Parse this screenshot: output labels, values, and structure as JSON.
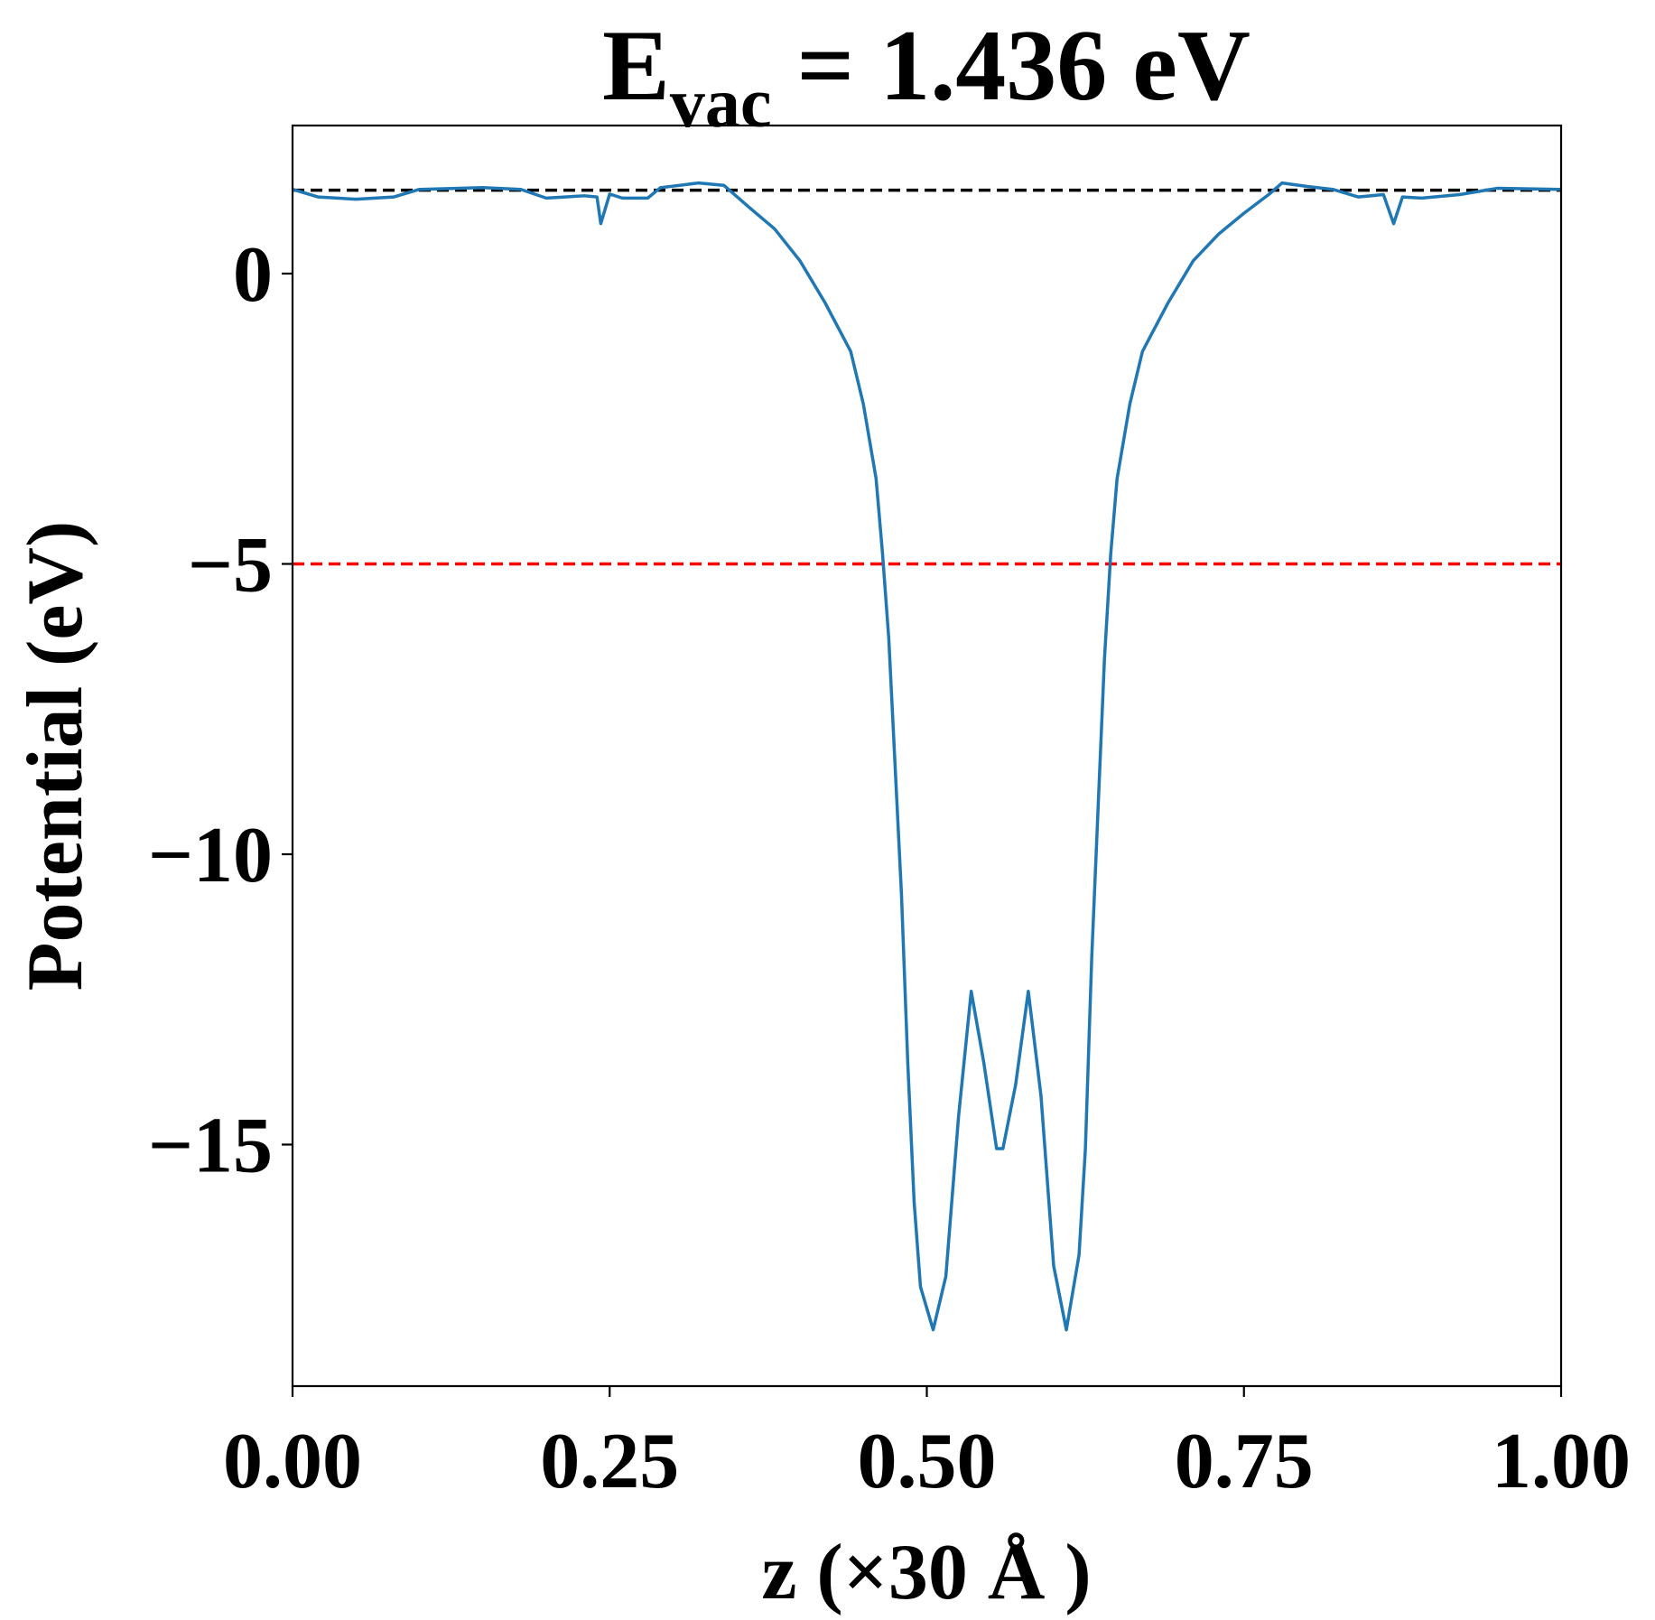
{
  "chart_data": {
    "type": "line",
    "title": {
      "main": "E",
      "sub": "vac",
      "rest": " = 1.436 eV"
    },
    "x_label": "z (×30 Å )",
    "y_label": "Potential (eV)",
    "xlim": [
      0,
      1
    ],
    "ylim": [
      -19.16,
      2.55
    ],
    "xticks": [
      {
        "value": 0,
        "label": "0.00"
      },
      {
        "value": 0.25,
        "label": "0.25"
      },
      {
        "value": 0.5,
        "label": "0.50"
      },
      {
        "value": 0.75,
        "label": "0.75"
      },
      {
        "value": 1,
        "label": "1.00"
      }
    ],
    "yticks": [
      {
        "value": 0,
        "label": "0"
      },
      {
        "value": -5,
        "label": "−5"
      },
      {
        "value": -10,
        "label": "−10"
      },
      {
        "value": -15,
        "label": "−15"
      }
    ],
    "hlines": [
      {
        "value": 1.436,
        "color": "#000000"
      },
      {
        "value": -5,
        "color": "#ff0000"
      }
    ],
    "series": [
      {
        "color": "#1f77b4",
        "x": [
          0,
          0.02,
          0.05,
          0.08,
          0.1,
          0.15,
          0.18,
          0.2,
          0.23,
          0.24,
          0.243,
          0.25,
          0.26,
          0.28,
          0.29,
          0.32,
          0.34,
          0.36,
          0.38,
          0.4,
          0.42,
          0.44,
          0.45,
          0.46,
          0.465,
          0.47,
          0.475,
          0.48,
          0.485,
          0.49,
          0.495,
          0.505,
          0.515,
          0.525,
          0.535,
          0.545,
          0.555,
          0.56,
          0.57,
          0.58,
          0.59,
          0.6,
          0.61,
          0.62,
          0.625,
          0.63,
          0.635,
          0.64,
          0.645,
          0.65,
          0.66,
          0.67,
          0.69,
          0.71,
          0.73,
          0.75,
          0.77,
          0.78,
          0.8,
          0.82,
          0.84,
          0.86,
          0.868,
          0.875,
          0.89,
          0.92,
          0.95,
          1.0
        ],
        "values": [
          1.45,
          1.32,
          1.28,
          1.32,
          1.45,
          1.48,
          1.45,
          1.3,
          1.34,
          1.32,
          0.86,
          1.37,
          1.3,
          1.3,
          1.48,
          1.56,
          1.52,
          1.14,
          0.77,
          0.22,
          -0.51,
          -1.34,
          -2.25,
          -3.53,
          -4.8,
          -6.28,
          -8.48,
          -10.68,
          -13.6,
          -15.99,
          -17.45,
          -18.19,
          -17.27,
          -14.52,
          -12.36,
          -13.6,
          -15.07,
          -15.07,
          -13.97,
          -12.36,
          -14.16,
          -17.09,
          -18.19,
          -16.9,
          -15.07,
          -11.78,
          -9.21,
          -6.65,
          -4.82,
          -3.53,
          -2.25,
          -1.34,
          -0.51,
          0.22,
          0.68,
          1.04,
          1.37,
          1.56,
          1.5,
          1.45,
          1.32,
          1.36,
          0.86,
          1.32,
          1.3,
          1.36,
          1.47,
          1.45
        ]
      }
    ]
  }
}
